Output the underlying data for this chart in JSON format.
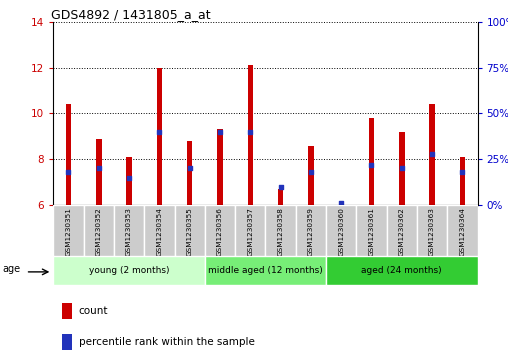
{
  "title": "GDS4892 / 1431805_a_at",
  "samples": [
    "GSM1230351",
    "GSM1230352",
    "GSM1230353",
    "GSM1230354",
    "GSM1230355",
    "GSM1230356",
    "GSM1230357",
    "GSM1230358",
    "GSM1230359",
    "GSM1230360",
    "GSM1230361",
    "GSM1230362",
    "GSM1230363",
    "GSM1230364"
  ],
  "count_values": [
    10.4,
    8.9,
    8.1,
    12.0,
    8.8,
    9.3,
    12.1,
    6.7,
    8.6,
    6.0,
    9.8,
    9.2,
    10.4,
    8.1
  ],
  "percentile_values": [
    18,
    20,
    15,
    40,
    20,
    40,
    40,
    10,
    18,
    1,
    22,
    20,
    28,
    18
  ],
  "ylim_left": [
    6,
    14
  ],
  "ylim_right": [
    0,
    100
  ],
  "yticks_left": [
    6,
    8,
    10,
    12,
    14
  ],
  "yticks_right": [
    0,
    25,
    50,
    75,
    100
  ],
  "bar_color": "#cc0000",
  "percentile_color": "#2233bb",
  "bar_width": 0.18,
  "groups": [
    {
      "label": "young (2 months)",
      "start": 0,
      "end": 5,
      "color": "#ccffcc"
    },
    {
      "label": "middle aged (12 months)",
      "start": 5,
      "end": 9,
      "color": "#77ee77"
    },
    {
      "label": "aged (24 months)",
      "start": 9,
      "end": 14,
      "color": "#33cc33"
    }
  ],
  "age_label": "age",
  "legend_count_label": "count",
  "legend_percentile_label": "percentile rank within the sample",
  "bg_color": "#ffffff",
  "tick_label_color_left": "#cc0000",
  "tick_label_color_right": "#0000cc",
  "label_box_color": "#cccccc",
  "label_box_edge": "#aaaaaa"
}
